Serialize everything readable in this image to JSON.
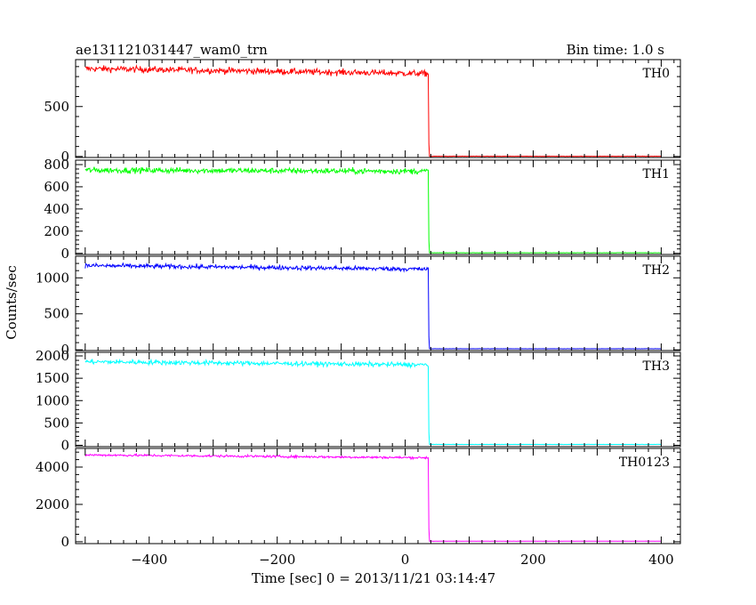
{
  "chart_data": {
    "type": "line",
    "title": "ae131121031447_wam0_trn",
    "subtitle": "Bin time: 1.0 s",
    "xlabel": "Time [sec] 0 = 2013/11/21 03:14:47",
    "ylabel": "Counts/sec",
    "xlim": [
      -515,
      430
    ],
    "x_ticks": [
      -400,
      -200,
      0,
      200,
      400
    ],
    "x_tick_labels": [
      "−400",
      "−200",
      "0",
      "200",
      "400"
    ],
    "grid": false,
    "cutoff_time": 37,
    "panels": [
      {
        "name": "TH0",
        "color": "#ff0000",
        "ylim": [
          -10,
          970
        ],
        "y_ticks": [
          0,
          500
        ],
        "before_start": 880,
        "before_end": 830,
        "noise": 30,
        "after": 2,
        "x_range": [
          -500,
          400
        ]
      },
      {
        "name": "TH1",
        "color": "#00ff00",
        "ylim": [
          -10,
          840
        ],
        "y_ticks": [
          0,
          200,
          400,
          600,
          800
        ],
        "before_start": 750,
        "before_end": 740,
        "noise": 25,
        "after": 5,
        "x_range": [
          -500,
          400
        ]
      },
      {
        "name": "TH2",
        "color": "#0000ff",
        "ylim": [
          -10,
          1300
        ],
        "y_ticks": [
          0,
          500,
          1000
        ],
        "before_start": 1170,
        "before_end": 1120,
        "noise": 30,
        "after": 15,
        "x_range": [
          -500,
          400
        ]
      },
      {
        "name": "TH3",
        "color": "#00ffff",
        "ylim": [
          -30,
          2080
        ],
        "y_ticks": [
          0,
          500,
          1000,
          1500,
          2000
        ],
        "before_start": 1870,
        "before_end": 1800,
        "noise": 50,
        "after": 20,
        "x_range": [
          -500,
          400
        ]
      },
      {
        "name": "TH0123",
        "color": "#ff00ff",
        "ylim": [
          -100,
          5000
        ],
        "y_ticks": [
          0,
          2000,
          4000
        ],
        "before_start": 4650,
        "before_end": 4500,
        "noise": 60,
        "after": 30,
        "x_range": [
          -500,
          400
        ]
      }
    ]
  }
}
